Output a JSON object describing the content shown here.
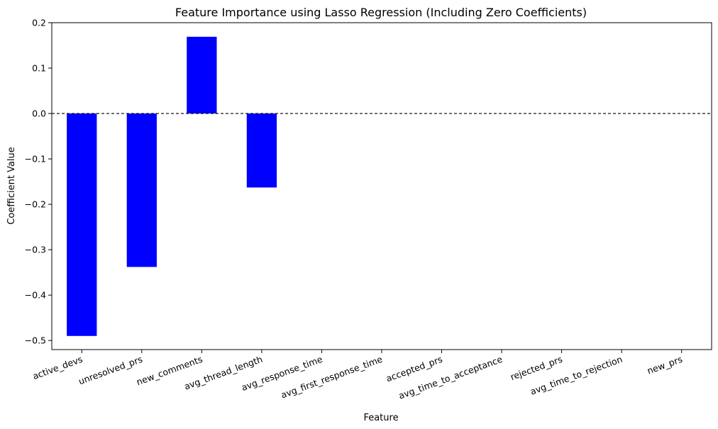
{
  "chart_data": {
    "type": "bar",
    "title": "Feature Importance using Lasso Regression (Including Zero Coefficients)",
    "xlabel": "Feature",
    "ylabel": "Coefficient Value",
    "categories": [
      "active_devs",
      "unresolved_prs",
      "new_comments",
      "avg_thread_length",
      "avg_response_time",
      "avg_first_response_time",
      "accepted_prs",
      "avg_time_to_acceptance",
      "rejected_prs",
      "avg_time_to_rejection",
      "new_prs"
    ],
    "values": [
      -0.49,
      -0.338,
      0.169,
      -0.163,
      0,
      0,
      0,
      0,
      0,
      0,
      0
    ],
    "ylim": [
      -0.52,
      0.2
    ],
    "yticks": [
      0.2,
      0.1,
      0.0,
      -0.1,
      -0.2,
      -0.3,
      -0.4,
      -0.5
    ],
    "ytick_labels": [
      "0.2",
      "0.1",
      "0.0",
      "−0.1",
      "−0.2",
      "−0.3",
      "−0.4",
      "−0.5"
    ],
    "bar_color": "#0000ff",
    "zero_line": "dashed",
    "grid": false,
    "legend": "none"
  }
}
